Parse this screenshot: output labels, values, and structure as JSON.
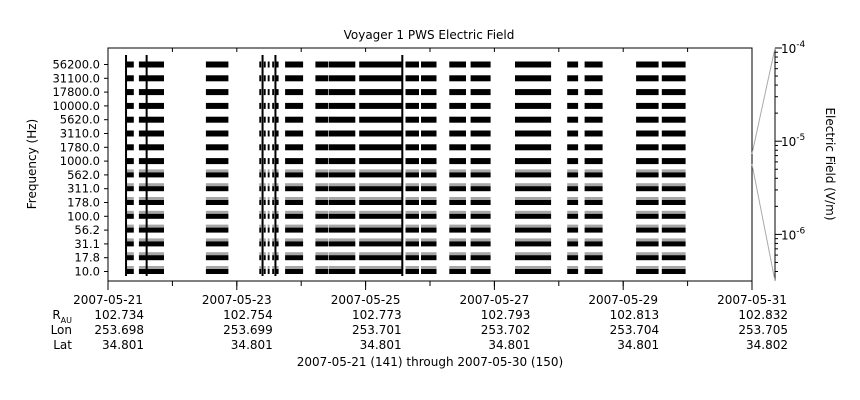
{
  "chart_data": {
    "type": "heatmap",
    "title": "Voyager 1 PWS Electric Field",
    "ylabel": "Frequency (Hz)",
    "colorbar_label": "Electric Field (V/m)",
    "colorbar_ticks": [
      {
        "base": "10",
        "exp": "-4",
        "value": 0.0001
      },
      {
        "base": "10",
        "exp": "-5",
        "value": 1e-05
      },
      {
        "base": "10",
        "exp": "-6",
        "value": 1e-06
      }
    ],
    "colorbar_scale": "log",
    "frequency_channels": [
      "56200.0",
      "31100.0",
      "17800.0",
      "10000.0",
      "5620.0",
      "3110.0",
      "1780.0",
      "1000.0",
      "562.0",
      "311.0",
      "178.0",
      "100.0",
      "56.2",
      "31.1",
      "17.8",
      "10.0"
    ],
    "x_ticks": [
      "2007-05-21",
      "2007-05-23",
      "2007-05-25",
      "2007-05-27",
      "2007-05-29",
      "2007-05-31"
    ],
    "xlim_days": [
      141,
      151
    ],
    "ephemeris": {
      "row_labels": {
        "r_main": "R",
        "r_sub": "AU",
        "lon": "Lon",
        "lat": "Lat"
      },
      "columns": [
        {
          "r": "102.734",
          "lon": "253.698",
          "lat": "34.801"
        },
        {
          "r": "102.754",
          "lon": "253.699",
          "lat": "34.801"
        },
        {
          "r": "102.773",
          "lon": "253.701",
          "lat": "34.801"
        },
        {
          "r": "102.793",
          "lon": "253.702",
          "lat": "34.801"
        },
        {
          "r": "102.813",
          "lon": "253.704",
          "lat": "34.801"
        },
        {
          "r": "102.832",
          "lon": "253.705",
          "lat": "34.802"
        }
      ]
    },
    "footer": "2007-05-21 (141) through 2007-05-30 (150)",
    "data_blocks_days": [
      [
        141.27,
        141.4
      ],
      [
        141.48,
        141.87
      ],
      [
        142.52,
        142.87
      ],
      [
        143.35,
        143.38
      ],
      [
        143.42,
        143.45
      ],
      [
        143.48,
        143.51
      ],
      [
        143.55,
        143.58
      ],
      [
        143.6,
        143.65
      ],
      [
        143.75,
        144.03
      ],
      [
        144.22,
        144.42
      ],
      [
        144.43,
        144.84
      ],
      [
        144.9,
        145.56
      ],
      [
        145.62,
        145.83
      ],
      [
        145.86,
        146.1
      ],
      [
        146.3,
        146.56
      ],
      [
        146.63,
        146.94
      ],
      [
        147.32,
        147.88
      ],
      [
        148.13,
        148.3
      ],
      [
        148.4,
        148.68
      ],
      [
        149.2,
        149.55
      ],
      [
        149.6,
        149.97
      ]
    ],
    "spike_days": [
      141.28,
      141.6,
      143.4,
      143.6,
      145.57
    ]
  }
}
